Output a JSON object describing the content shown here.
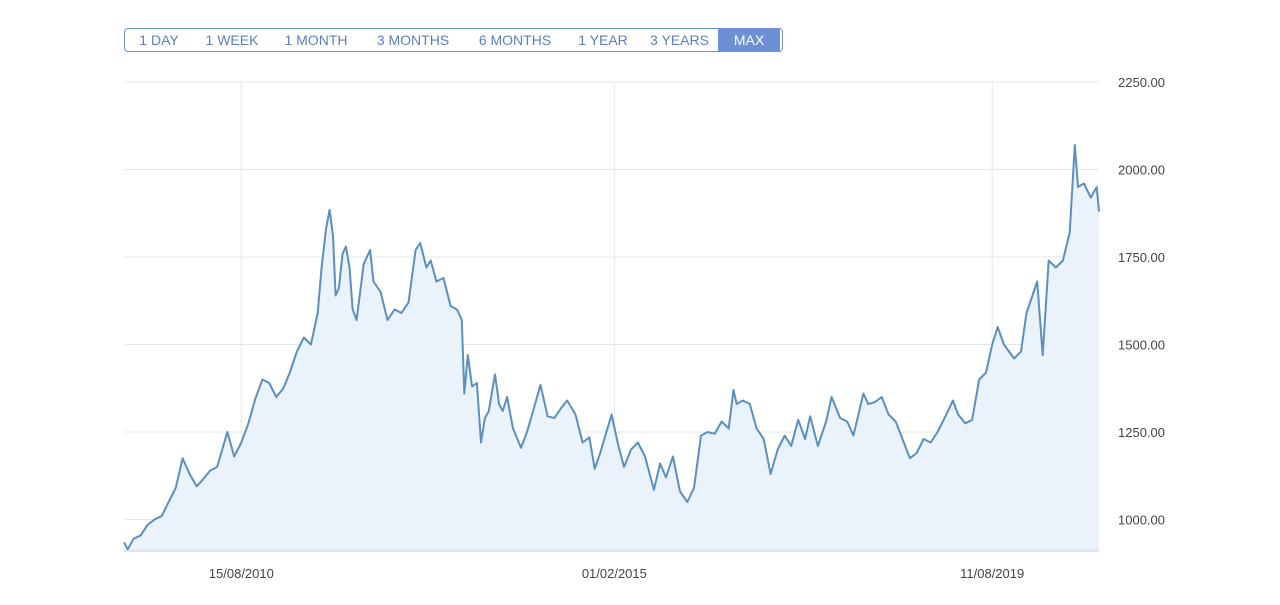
{
  "range_selector": {
    "buttons": [
      "1 DAY",
      "1 WEEK",
      "1 MONTH",
      "3 MONTHS",
      "6 MONTHS",
      "1 YEAR",
      "3 YEARS",
      "MAX"
    ],
    "active": "MAX"
  },
  "colors": {
    "line": "#5b8fc0",
    "fill": "#eaf2fb",
    "grid": "#e3e6ea",
    "accent": "#6c8fd6"
  },
  "chart_data": {
    "type": "area",
    "title": "",
    "xlabel": "",
    "ylabel": "",
    "ylim": [
      910,
      2250
    ],
    "xlim": [
      "2009-03-20",
      "2020-11-20"
    ],
    "grid": true,
    "y_axis_position": "right",
    "y_ticks": [
      "1000.00",
      "1250.00",
      "1500.00",
      "1750.00",
      "2000.00",
      "2250.00"
    ],
    "x_ticks": [
      {
        "date": "2010-08-15",
        "label": "15/08/2010"
      },
      {
        "date": "2015-02-01",
        "label": "01/02/2015"
      },
      {
        "date": "2019-08-11",
        "label": "11/08/2019"
      }
    ],
    "series": [
      {
        "points": [
          [
            "2009-03-20",
            935
          ],
          [
            "2009-04-05",
            915
          ],
          [
            "2009-05-01",
            945
          ],
          [
            "2009-06-01",
            955
          ],
          [
            "2009-07-01",
            985
          ],
          [
            "2009-08-01",
            1000
          ],
          [
            "2009-09-01",
            1010
          ],
          [
            "2009-10-01",
            1050
          ],
          [
            "2009-11-01",
            1090
          ],
          [
            "2009-12-01",
            1175
          ],
          [
            "2010-01-01",
            1130
          ],
          [
            "2010-02-01",
            1095
          ],
          [
            "2010-03-01",
            1115
          ],
          [
            "2010-04-01",
            1140
          ],
          [
            "2010-05-01",
            1150
          ],
          [
            "2010-06-15",
            1250
          ],
          [
            "2010-07-15",
            1180
          ],
          [
            "2010-08-15",
            1220
          ],
          [
            "2010-09-15",
            1275
          ],
          [
            "2010-10-15",
            1345
          ],
          [
            "2010-11-15",
            1400
          ],
          [
            "2010-12-15",
            1390
          ],
          [
            "2011-01-15",
            1350
          ],
          [
            "2011-02-15",
            1375
          ],
          [
            "2011-03-15",
            1420
          ],
          [
            "2011-04-15",
            1480
          ],
          [
            "2011-05-15",
            1520
          ],
          [
            "2011-06-15",
            1500
          ],
          [
            "2011-07-15",
            1590
          ],
          [
            "2011-08-01",
            1720
          ],
          [
            "2011-08-20",
            1830
          ],
          [
            "2011-09-05",
            1885
          ],
          [
            "2011-09-20",
            1810
          ],
          [
            "2011-10-01",
            1640
          ],
          [
            "2011-10-15",
            1660
          ],
          [
            "2011-11-01",
            1760
          ],
          [
            "2011-11-15",
            1780
          ],
          [
            "2011-12-01",
            1720
          ],
          [
            "2011-12-15",
            1600
          ],
          [
            "2012-01-01",
            1570
          ],
          [
            "2012-02-01",
            1730
          ],
          [
            "2012-02-29",
            1770
          ],
          [
            "2012-03-15",
            1680
          ],
          [
            "2012-04-15",
            1650
          ],
          [
            "2012-05-15",
            1570
          ],
          [
            "2012-06-15",
            1600
          ],
          [
            "2012-07-15",
            1590
          ],
          [
            "2012-08-15",
            1620
          ],
          [
            "2012-09-15",
            1770
          ],
          [
            "2012-10-05",
            1790
          ],
          [
            "2012-11-01",
            1720
          ],
          [
            "2012-11-20",
            1740
          ],
          [
            "2012-12-15",
            1680
          ],
          [
            "2013-01-15",
            1690
          ],
          [
            "2013-02-15",
            1610
          ],
          [
            "2013-03-15",
            1600
          ],
          [
            "2013-04-05",
            1570
          ],
          [
            "2013-04-16",
            1360
          ],
          [
            "2013-05-01",
            1470
          ],
          [
            "2013-05-20",
            1380
          ],
          [
            "2013-06-10",
            1390
          ],
          [
            "2013-06-28",
            1220
          ],
          [
            "2013-07-15",
            1290
          ],
          [
            "2013-08-01",
            1310
          ],
          [
            "2013-08-28",
            1415
          ],
          [
            "2013-09-15",
            1330
          ],
          [
            "2013-10-01",
            1310
          ],
          [
            "2013-10-20",
            1350
          ],
          [
            "2013-11-15",
            1260
          ],
          [
            "2013-12-20",
            1205
          ],
          [
            "2014-01-15",
            1250
          ],
          [
            "2014-02-15",
            1320
          ],
          [
            "2014-03-15",
            1385
          ],
          [
            "2014-04-15",
            1295
          ],
          [
            "2014-05-15",
            1290
          ],
          [
            "2014-06-15",
            1320
          ],
          [
            "2014-07-10",
            1340
          ],
          [
            "2014-08-15",
            1300
          ],
          [
            "2014-09-15",
            1220
          ],
          [
            "2014-10-15",
            1235
          ],
          [
            "2014-11-07",
            1145
          ],
          [
            "2014-12-01",
            1190
          ],
          [
            "2015-01-20",
            1300
          ],
          [
            "2015-02-15",
            1220
          ],
          [
            "2015-03-15",
            1150
          ],
          [
            "2015-04-15",
            1200
          ],
          [
            "2015-05-15",
            1220
          ],
          [
            "2015-06-15",
            1180
          ],
          [
            "2015-07-24",
            1085
          ],
          [
            "2015-08-20",
            1160
          ],
          [
            "2015-09-15",
            1120
          ],
          [
            "2015-10-15",
            1180
          ],
          [
            "2015-11-15",
            1080
          ],
          [
            "2015-12-17",
            1050
          ],
          [
            "2016-01-15",
            1090
          ],
          [
            "2016-02-15",
            1240
          ],
          [
            "2016-03-15",
            1250
          ],
          [
            "2016-04-15",
            1245
          ],
          [
            "2016-05-15",
            1280
          ],
          [
            "2016-06-15",
            1260
          ],
          [
            "2016-07-06",
            1370
          ],
          [
            "2016-07-20",
            1330
          ],
          [
            "2016-08-15",
            1340
          ],
          [
            "2016-09-15",
            1330
          ],
          [
            "2016-10-15",
            1260
          ],
          [
            "2016-11-15",
            1230
          ],
          [
            "2016-12-15",
            1130
          ],
          [
            "2017-01-15",
            1200
          ],
          [
            "2017-02-15",
            1240
          ],
          [
            "2017-03-15",
            1210
          ],
          [
            "2017-04-15",
            1285
          ],
          [
            "2017-05-15",
            1230
          ],
          [
            "2017-06-06",
            1295
          ],
          [
            "2017-07-10",
            1210
          ],
          [
            "2017-08-15",
            1280
          ],
          [
            "2017-09-08",
            1350
          ],
          [
            "2017-10-15",
            1290
          ],
          [
            "2017-11-15",
            1280
          ],
          [
            "2017-12-12",
            1240
          ],
          [
            "2018-01-25",
            1360
          ],
          [
            "2018-02-15",
            1330
          ],
          [
            "2018-03-15",
            1335
          ],
          [
            "2018-04-15",
            1350
          ],
          [
            "2018-05-15",
            1300
          ],
          [
            "2018-06-15",
            1280
          ],
          [
            "2018-07-15",
            1230
          ],
          [
            "2018-08-16",
            1175
          ],
          [
            "2018-09-15",
            1190
          ],
          [
            "2018-10-15",
            1230
          ],
          [
            "2018-11-15",
            1220
          ],
          [
            "2018-12-15",
            1250
          ],
          [
            "2019-01-15",
            1290
          ],
          [
            "2019-02-20",
            1340
          ],
          [
            "2019-03-15",
            1300
          ],
          [
            "2019-04-15",
            1275
          ],
          [
            "2019-05-15",
            1285
          ],
          [
            "2019-06-15",
            1400
          ],
          [
            "2019-07-15",
            1420
          ],
          [
            "2019-08-11",
            1500
          ],
          [
            "2019-09-04",
            1550
          ],
          [
            "2019-10-01",
            1500
          ],
          [
            "2019-11-15",
            1460
          ],
          [
            "2019-12-15",
            1480
          ],
          [
            "2020-01-08",
            1590
          ],
          [
            "2020-02-24",
            1680
          ],
          [
            "2020-03-19",
            1470
          ],
          [
            "2020-04-14",
            1740
          ],
          [
            "2020-05-15",
            1720
          ],
          [
            "2020-06-15",
            1740
          ],
          [
            "2020-07-15",
            1820
          ],
          [
            "2020-08-06",
            2070
          ],
          [
            "2020-08-20",
            1950
          ],
          [
            "2020-09-15",
            1960
          ],
          [
            "2020-10-15",
            1920
          ],
          [
            "2020-11-10",
            1950
          ],
          [
            "2020-11-20",
            1880
          ]
        ]
      }
    ]
  }
}
